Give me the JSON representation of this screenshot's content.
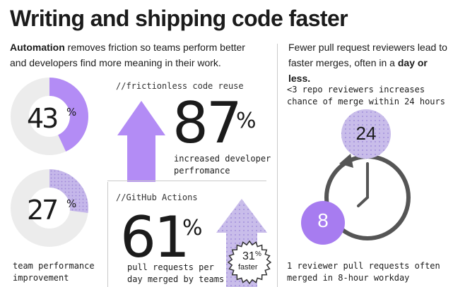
{
  "title": "Writing and shipping code faster",
  "intro": {
    "bold": "Automation",
    "rest": " removes friction so teams perform better and developers find more meaning in their work."
  },
  "donuts": [
    {
      "value": "43",
      "suffix": "%",
      "fraction": 0.43
    },
    {
      "value": "27",
      "suffix": "%",
      "fraction": 0.27
    }
  ],
  "team_label": "team performance improvement",
  "frictionless": {
    "label": "//frictionless code reuse",
    "value": "87",
    "suffix": "%",
    "description": "increased developer perfromance"
  },
  "actions": {
    "label": "//GitHub Actions",
    "value": "61",
    "suffix": "%",
    "description": "pull requests per day merged by teams",
    "badge_value": "31",
    "badge_suffix": "%",
    "badge_text": "faster"
  },
  "right": {
    "intro_plain": "Fewer pull request reviewers lead to faster merges, often in a ",
    "intro_bold": "day or less.",
    "stat1": "<3 repo reviewers increases chance of merge within 24 hours",
    "circle_top": "24",
    "circle_bottom": "8",
    "stat2": "1 reviewer pull requests often merged in 8-hour workday"
  },
  "colors": {
    "purple": "#b38cf5",
    "light_purple": "#c5b7ea",
    "dark_purple": "#a77cf0",
    "ring_gray": "#ececec",
    "clock_gray": "#555555"
  }
}
